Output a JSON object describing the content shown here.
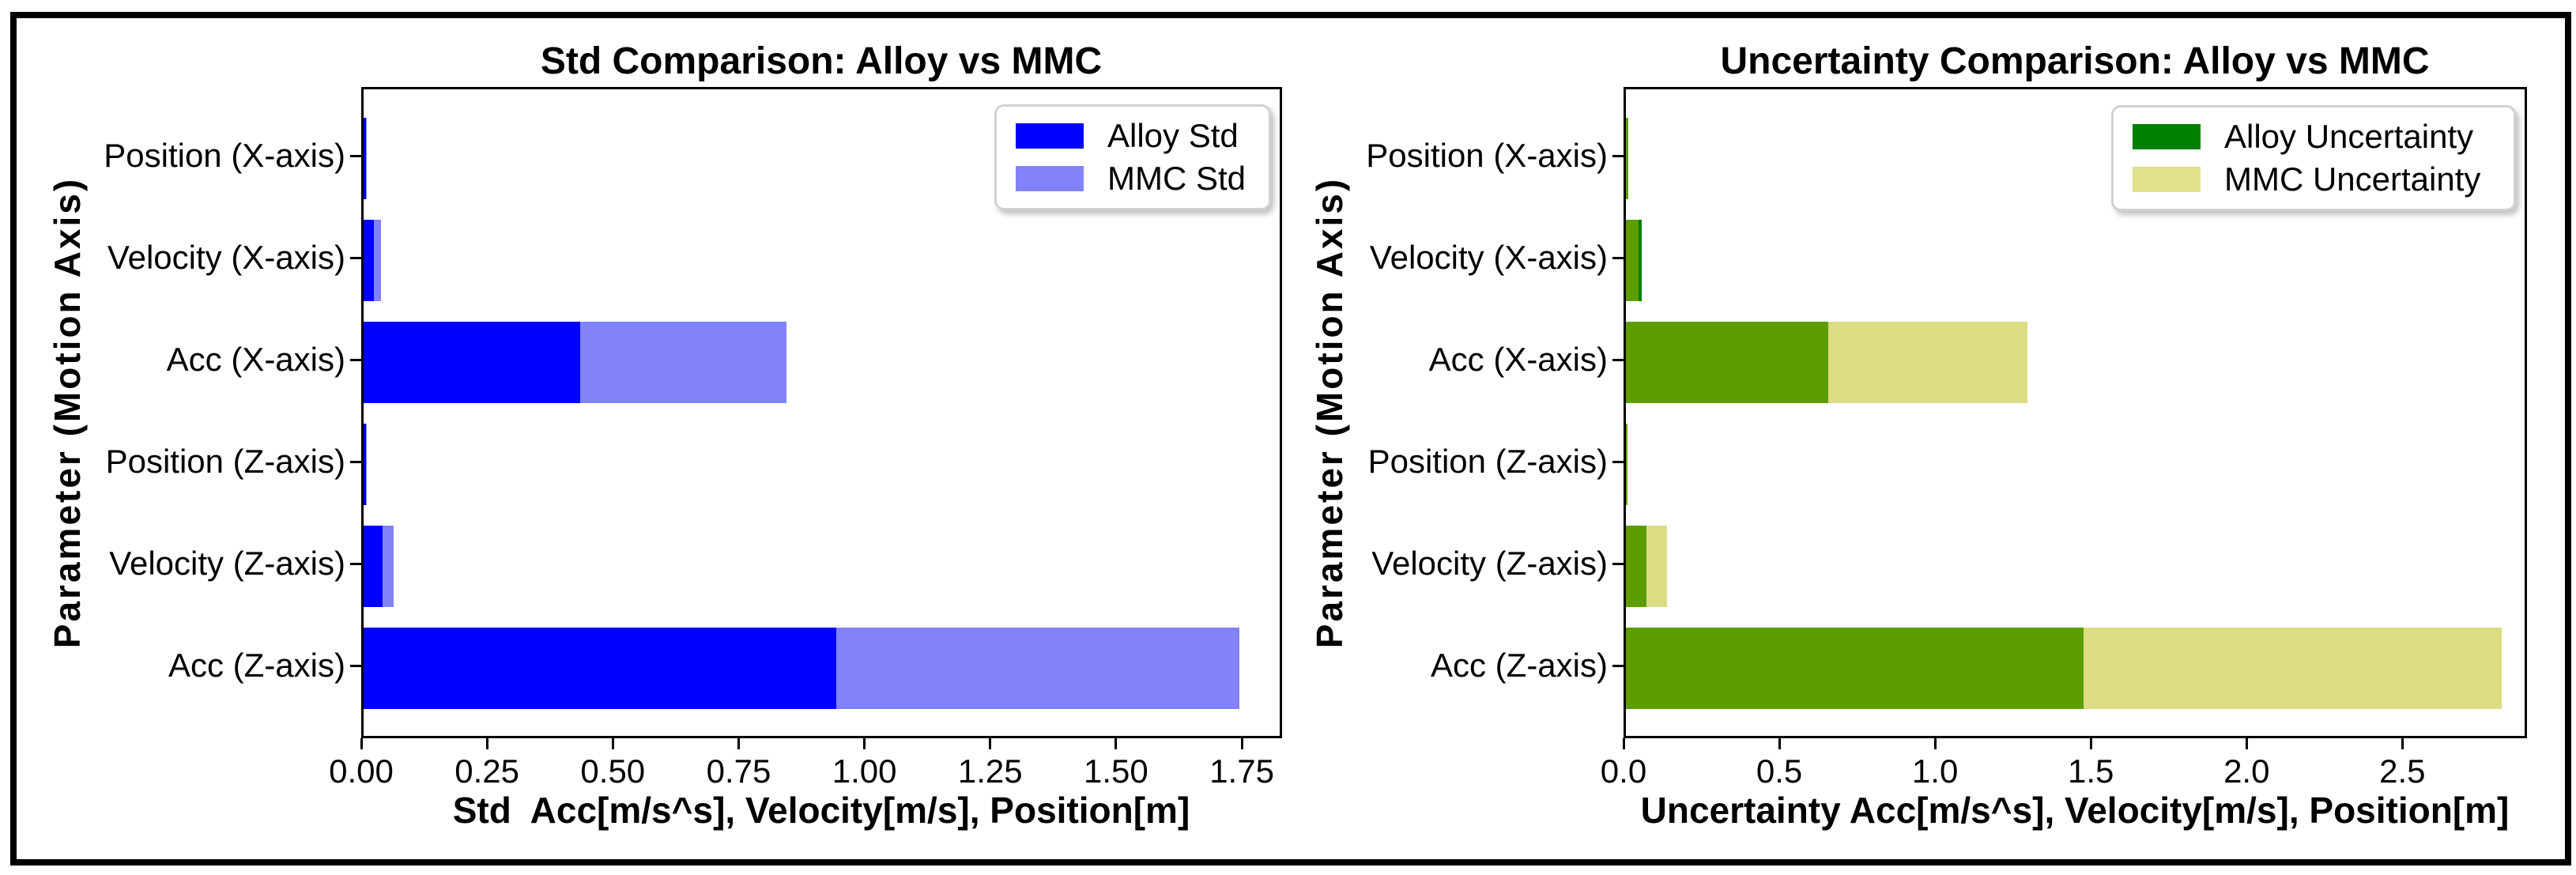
{
  "window": {
    "background": "#ffffff",
    "frame_color": "#000000"
  },
  "chart_data": [
    {
      "type": "bar",
      "orientation": "horizontal",
      "overlay": true,
      "title": "Std Comparison: Alloy vs MMC",
      "xlabel": "Std  Acc[m/s^s], Velocity[m/s], Position[m]",
      "ylabel": "Parameter (Motion Axis)",
      "categories": [
        "Position (X-axis)",
        "Velocity (X-axis)",
        "Acc (X-axis)",
        "Position (Z-axis)",
        "Velocity (Z-axis)",
        "Acc (Z-axis)"
      ],
      "series": [
        {
          "name": "Alloy Std",
          "values": [
            0.004,
            0.02,
            0.43,
            0.004,
            0.038,
            0.94
          ],
          "color": "#0000ff"
        },
        {
          "name": "MMC Std",
          "values": [
            0.006,
            0.034,
            0.84,
            0.006,
            0.06,
            1.74
          ],
          "color": "#8282fa"
        }
      ],
      "note": "MMC bar is drawn from 0 with transparency over the Alloy bar; values are total bar extents read from the axis",
      "xlim": [
        0,
        1.83
      ],
      "xticks": {
        "labels": [
          "0.00",
          "0.25",
          "0.50",
          "0.75",
          "1.00",
          "1.25",
          "1.50",
          "1.75"
        ],
        "values": [
          0,
          0.25,
          0.5,
          0.75,
          1.0,
          1.25,
          1.5,
          1.75
        ]
      },
      "colors": {
        "overlap": "#0000ff",
        "alloy_excess": "#0000ff",
        "mmc_excess": "#8282fa",
        "legend_alloy": "#0000ff",
        "legend_mmc": "#8282fa"
      },
      "legend": [
        "Alloy Std",
        "MMC Std"
      ],
      "legend_position": "upper right",
      "grid": false
    },
    {
      "type": "bar",
      "orientation": "horizontal",
      "overlay": true,
      "title": "Uncertainty Comparison: Alloy vs MMC",
      "xlabel": "Uncertainty Acc[m/s^s], Velocity[m/s], Position[m]",
      "ylabel": "Parameter (Motion Axis)",
      "categories": [
        "Position (X-axis)",
        "Velocity (X-axis)",
        "Acc (X-axis)",
        "Position (Z-axis)",
        "Velocity (Z-axis)",
        "Acc (Z-axis)"
      ],
      "series": [
        {
          "name": "Alloy Uncertainty",
          "values": [
            0.008,
            0.052,
            0.65,
            0.006,
            0.066,
            1.47
          ],
          "color": "#008000"
        },
        {
          "name": "MMC Uncertainty",
          "values": [
            0.008,
            0.041,
            1.29,
            0.006,
            0.132,
            2.81
          ],
          "color": "#dcdc84"
        }
      ],
      "note": "Khaki MMC bar drawn from 0 with transparency over green Alloy bar: overlap renders olive; Alloy longer than MMC renders pure green tip (Velocity X-axis)",
      "xlim": [
        0,
        2.9
      ],
      "xticks": {
        "labels": [
          "0.0",
          "0.5",
          "1.0",
          "1.5",
          "2.0",
          "2.5"
        ],
        "values": [
          0,
          0.5,
          1.0,
          1.5,
          2.0,
          2.5
        ]
      },
      "colors": {
        "overlap": "#5c9e00",
        "alloy_excess": "#008000",
        "mmc_excess": "#dcdc84",
        "legend_alloy": "#008000",
        "legend_mmc": "#e0e08d"
      },
      "legend": [
        "Alloy Uncertainty",
        "MMC Uncertainty"
      ],
      "legend_position": "upper right",
      "grid": false
    }
  ]
}
